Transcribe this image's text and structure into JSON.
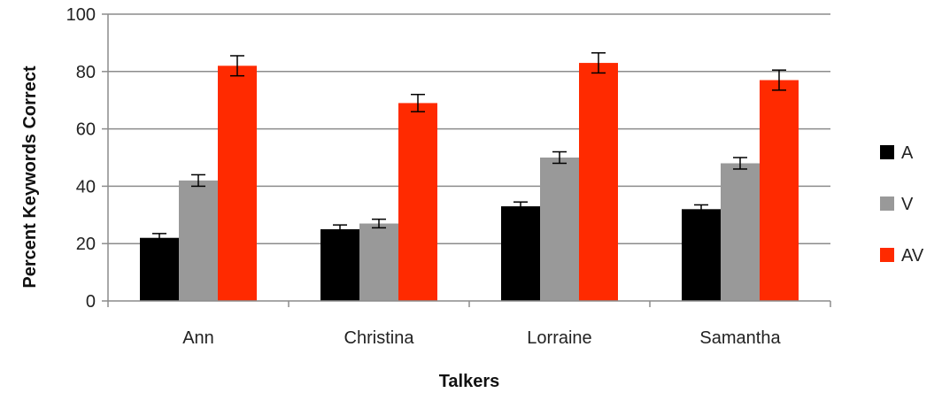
{
  "chart_data": {
    "type": "bar",
    "title": "",
    "xlabel": "Talkers",
    "ylabel": "Percent Keywords Correct",
    "ylim": [
      0,
      100
    ],
    "yticks": [
      0,
      20,
      40,
      60,
      80,
      100
    ],
    "grid": true,
    "legend_position": "right",
    "categories": [
      "Ann",
      "Christina",
      "Lorraine",
      "Samantha"
    ],
    "series": [
      {
        "name": "A",
        "color": "#000000",
        "values": [
          22,
          25,
          33,
          32
        ],
        "errors": [
          1.5,
          1.5,
          1.5,
          1.5
        ]
      },
      {
        "name": "V",
        "color": "#999999",
        "values": [
          42,
          27,
          50,
          48
        ],
        "errors": [
          2.0,
          1.5,
          2.0,
          2.0
        ]
      },
      {
        "name": "AV",
        "color": "#ff2a00",
        "values": [
          82,
          69,
          83,
          77
        ],
        "errors": [
          3.5,
          3.0,
          3.5,
          3.5
        ]
      }
    ]
  }
}
